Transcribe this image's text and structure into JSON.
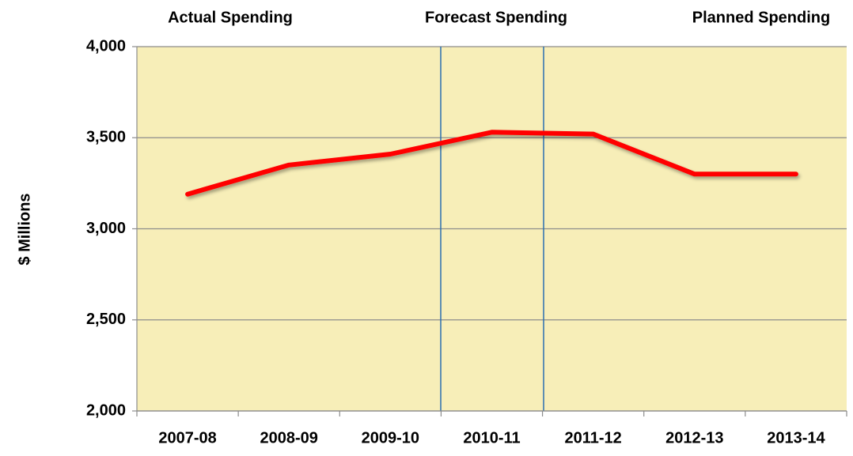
{
  "chart_data": {
    "type": "line",
    "annotations": [
      "Actual Spending",
      "Forecast Spending",
      "Planned Spending"
    ],
    "y_label": "$ Millions",
    "categories": [
      "2007-08",
      "2008-09",
      "2009-10",
      "2010-11",
      "2011-12",
      "2012-13",
      "2013-14"
    ],
    "values": [
      3190,
      3350,
      3410,
      3530,
      3520,
      3300,
      3300
    ],
    "color": "#ff0000",
    "ylim": [
      2000,
      4000
    ],
    "yticks": [
      {
        "value": 2000,
        "label": "2,000"
      },
      {
        "value": 2500,
        "label": "2,500"
      },
      {
        "value": 3000,
        "label": "3,000"
      },
      {
        "value": 3500,
        "label": "3,500"
      },
      {
        "value": 4000,
        "label": "4,000"
      }
    ],
    "grid": true
  }
}
